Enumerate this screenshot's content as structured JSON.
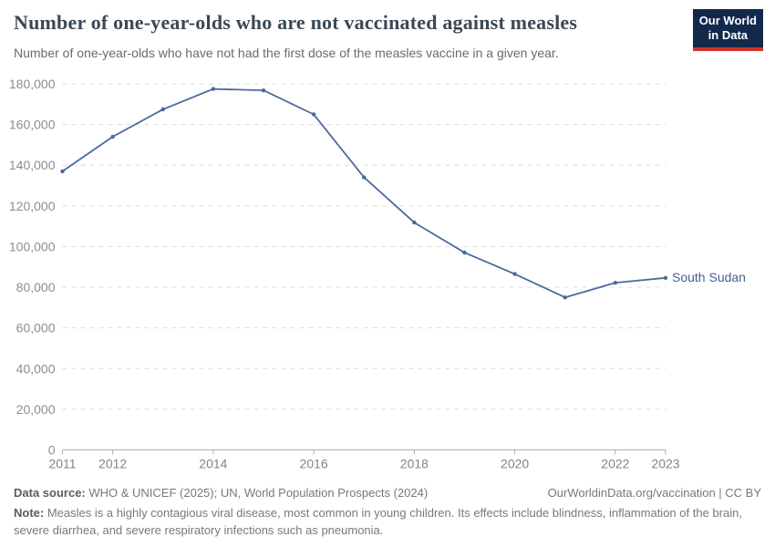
{
  "header": {
    "title": "Number of one-year-olds who are not vaccinated against measles",
    "subtitle": "Number of one-year-olds who have not had the first dose of the measles vaccine in a given year.",
    "logo_line1": "Our World",
    "logo_line2": "in Data"
  },
  "chart_data": {
    "type": "line",
    "title": "Number of one-year-olds who are not vaccinated against measles",
    "x": [
      2011,
      2012,
      2013,
      2014,
      2015,
      2016,
      2017,
      2018,
      2019,
      2020,
      2021,
      2022,
      2023
    ],
    "series": [
      {
        "name": "South Sudan",
        "color": "#4c6a9c",
        "values": [
          137000,
          154000,
          167500,
          177500,
          176800,
          165000,
          134000,
          111800,
          97000,
          86500,
          75000,
          82200,
          84600
        ]
      }
    ],
    "xlabel": "",
    "ylabel": "",
    "ylim": [
      0,
      180000
    ],
    "y_tick_step": 20000,
    "x_tick_labels": [
      2011,
      2012,
      2014,
      2016,
      2018,
      2020,
      2022,
      2023
    ],
    "grid": "horizontal-dashed",
    "legend_position": "end-of-line"
  },
  "colors": {
    "line": "#4c6a9c",
    "grid": "#dcdcdc",
    "axis": "#a9afb3",
    "logo_navy": "#12294b",
    "logo_red": "#d0342c"
  },
  "footer": {
    "datasource_label": "Data source:",
    "datasource_text": " WHO & UNICEF (2025); UN, World Population Prospects (2024)",
    "link_text": "OurWorldinData.org/vaccination | CC BY",
    "note_label": "Note:",
    "note_text": " Measles is a highly contagious viral disease, most common in young children. Its effects include blindness, inflammation of the brain, severe diarrhea, and severe respiratory infections such as pneumonia."
  }
}
